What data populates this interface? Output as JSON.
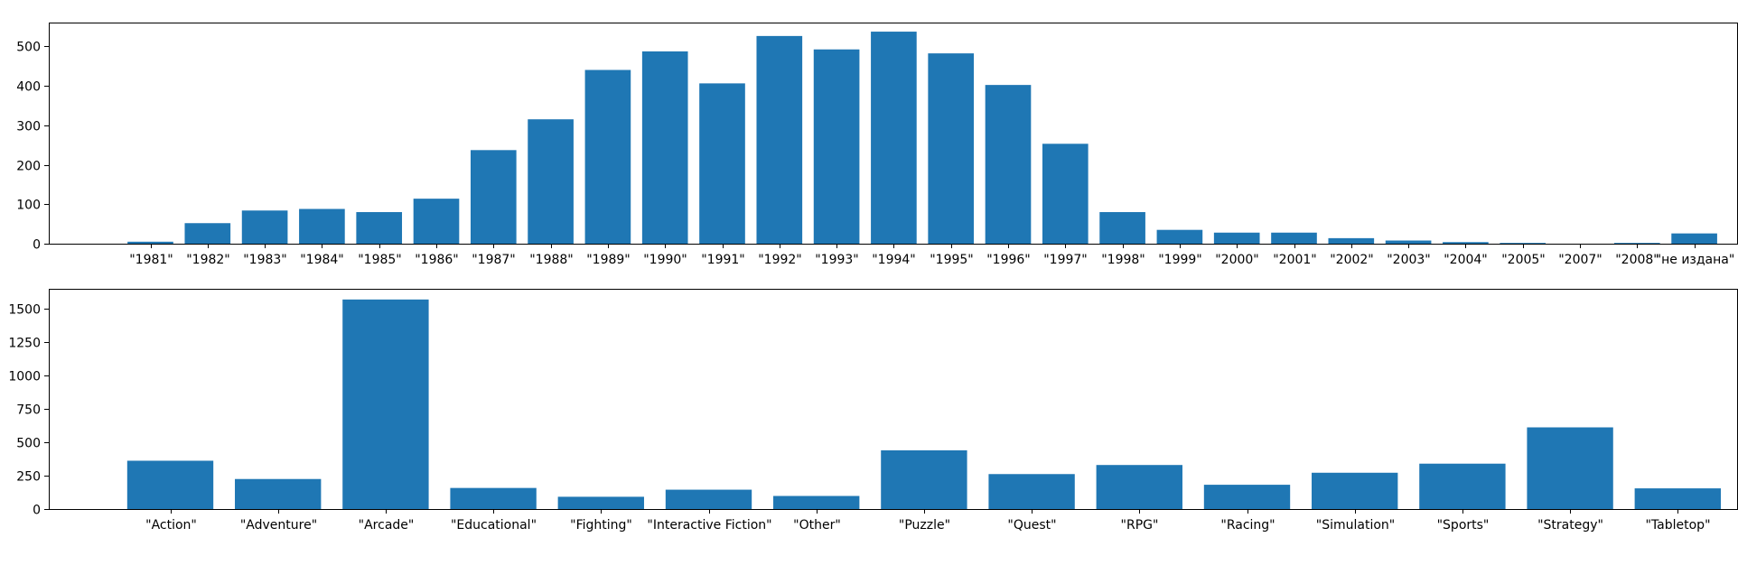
{
  "chart_data": [
    {
      "type": "bar",
      "title": "",
      "xlabel": "",
      "ylabel": "",
      "ylim": [
        0,
        560
      ],
      "yticks": [
        0,
        100,
        200,
        300,
        400,
        500
      ],
      "bar_color": "#1f77b4",
      "categories": [
        "\"1981\"",
        "\"1982\"",
        "\"1983\"",
        "\"1984\"",
        "\"1985\"",
        "\"1986\"",
        "\"1987\"",
        "\"1988\"",
        "\"1989\"",
        "\"1990\"",
        "\"1991\"",
        "\"1992\"",
        "\"1993\"",
        "\"1994\"",
        "\"1995\"",
        "\"1996\"",
        "\"1997\"",
        "\"1998\"",
        "\"1999\"",
        "\"2000\"",
        "\"2001\"",
        "\"2002\"",
        "\"2003\"",
        "\"2004\"",
        "\"2005\"",
        "\"2007\"",
        "\"2008\"",
        "\"не издана\""
      ],
      "values": [
        5,
        52,
        84,
        88,
        80,
        114,
        237,
        315,
        440,
        487,
        406,
        526,
        492,
        537,
        482,
        402,
        253,
        80,
        35,
        28,
        28,
        14,
        8,
        4,
        2,
        0,
        2,
        26
      ]
    },
    {
      "type": "bar",
      "title": "",
      "xlabel": "",
      "ylabel": "",
      "ylim": [
        0,
        1650
      ],
      "yticks": [
        0,
        250,
        500,
        750,
        1000,
        1250,
        1500
      ],
      "bar_color": "#1f77b4",
      "categories": [
        "\"Action\"",
        "\"Adventure\"",
        "\"Arcade\"",
        "\"Educational\"",
        "\"Fighting\"",
        "\"Interactive Fiction\"",
        "\"Other\"",
        "\"Puzzle\"",
        "\"Quest\"",
        "\"RPG\"",
        "\"Racing\"",
        "\"Simulation\"",
        "\"Sports\"",
        "\"Strategy\"",
        "\"Tabletop\""
      ],
      "values": [
        362,
        225,
        1570,
        158,
        92,
        145,
        98,
        440,
        262,
        330,
        182,
        272,
        340,
        612,
        155
      ]
    }
  ]
}
